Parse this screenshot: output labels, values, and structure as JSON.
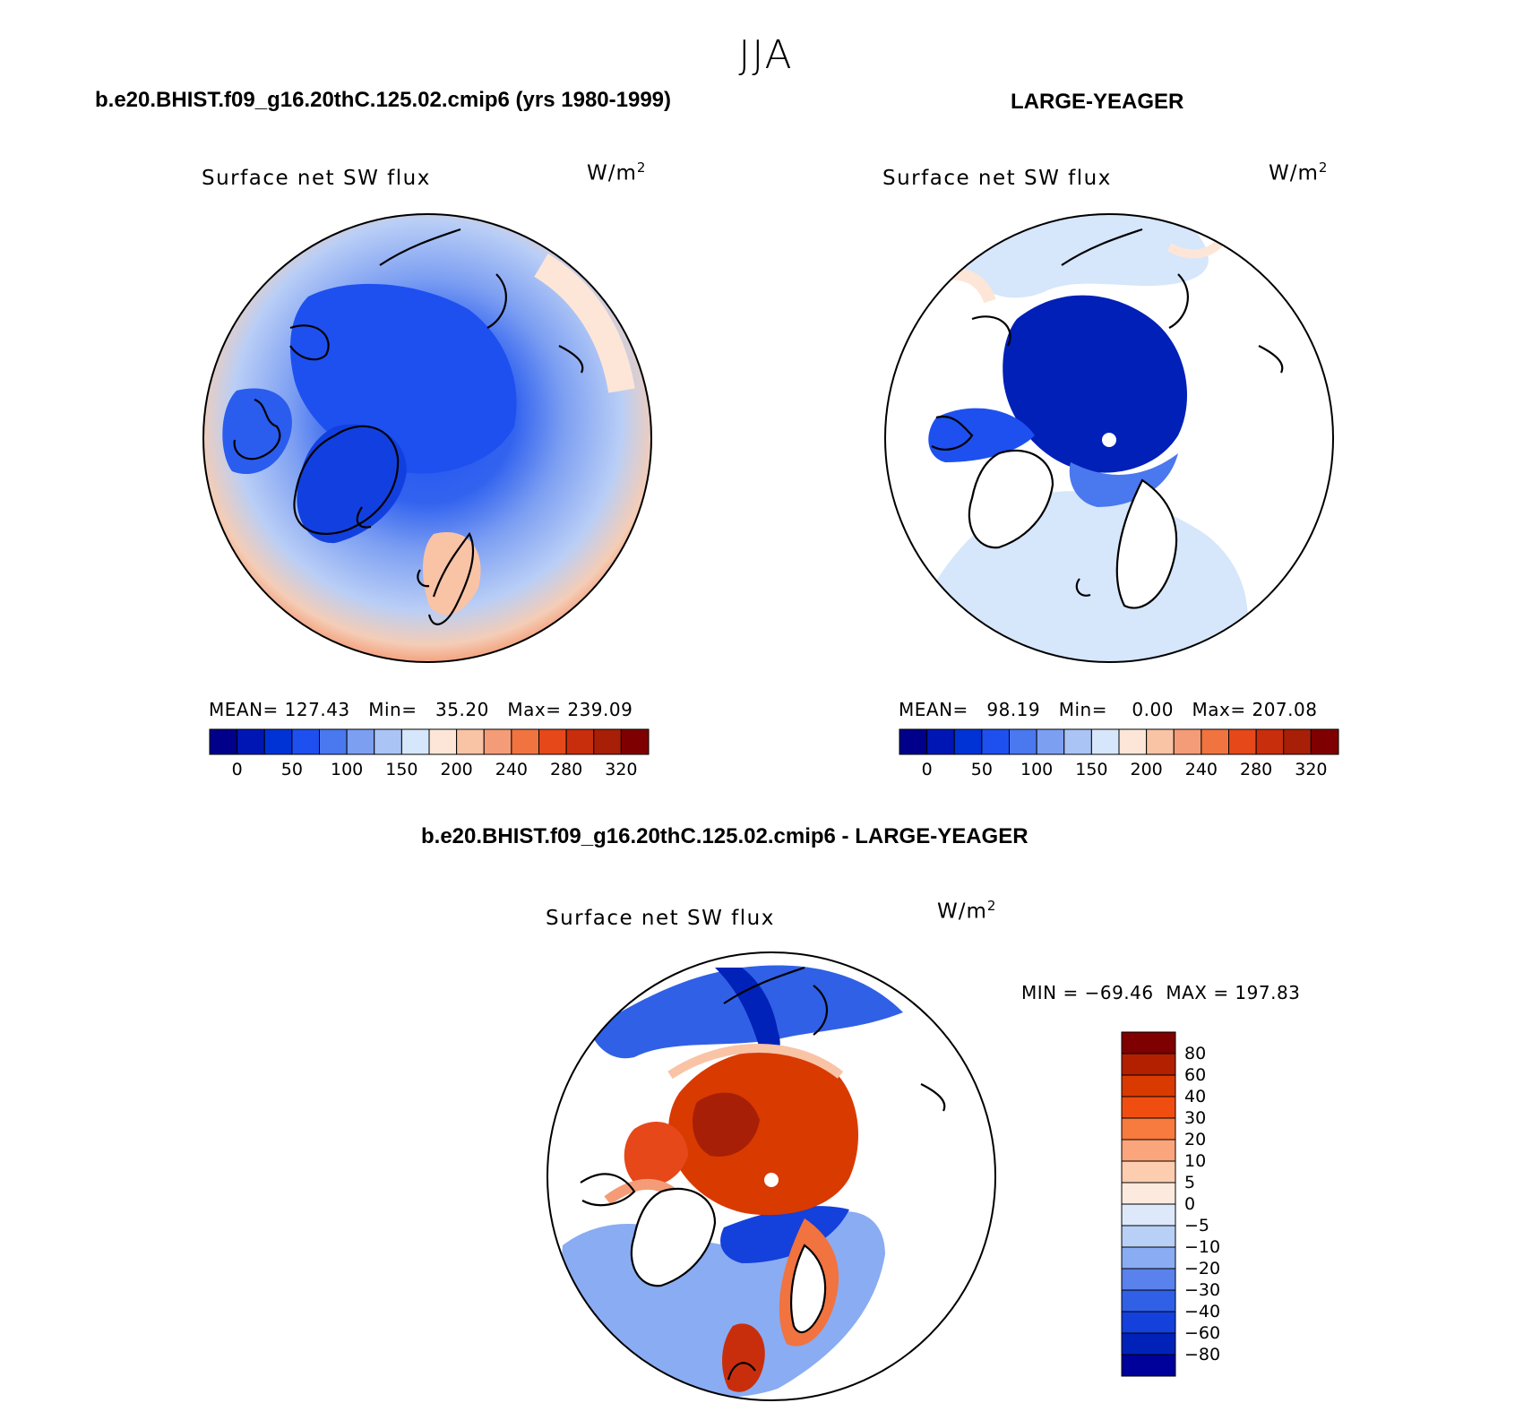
{
  "season": "JJA",
  "panels": [
    {
      "id": "model",
      "header": "b.e20.BHIST.f09_g16.20thC.125.02.cmip6 (yrs 1980-1999)",
      "variable": "Surface net SW flux",
      "units": "W/m",
      "units_exp": "2",
      "stats": {
        "mean_label": "MEAN=",
        "mean": "127.43",
        "min_label": "Min=",
        "min": "35.20",
        "max_label": "Max=",
        "max": "239.09"
      }
    },
    {
      "id": "obs",
      "header": "LARGE-YEAGER",
      "variable": "Surface net SW flux",
      "units": "W/m",
      "units_exp": "2",
      "stats": {
        "mean_label": "MEAN=",
        "mean": "98.19",
        "min_label": "Min=",
        "min": "0.00",
        "max_label": "Max=",
        "max": "207.08"
      }
    },
    {
      "id": "diff",
      "header": "b.e20.BHIST.f09_g16.20thC.125.02.cmip6 - LARGE-YEAGER",
      "variable": "Surface net SW flux",
      "units": "W/m",
      "units_exp": "2",
      "minmax": "MIN = −69.46  MAX = 197.83"
    }
  ],
  "abs_colorbar": {
    "colors": [
      "#00008b",
      "#0016b4",
      "#0033d6",
      "#1e50f0",
      "#4a78ee",
      "#7d9ff2",
      "#aac4f6",
      "#d6e6fb",
      "#fde6d7",
      "#f9c3a6",
      "#f49c77",
      "#f1733f",
      "#e64819",
      "#c92e0c",
      "#a81f08",
      "#7f0000"
    ],
    "labels": [
      "0",
      "50",
      "100",
      "150",
      "200",
      "240",
      "280",
      "320"
    ]
  },
  "diff_colorbar": {
    "colors": [
      "#7f0000",
      "#b22000",
      "#d93a00",
      "#f04e10",
      "#f77a3e",
      "#fba57c",
      "#fdcdb0",
      "#fdeade",
      "#dde9fa",
      "#b8d0f6",
      "#8aacf2",
      "#5a82ec",
      "#3060e6",
      "#1440dc",
      "#0022b8",
      "#00009a"
    ],
    "labels": [
      "80",
      "60",
      "40",
      "30",
      "20",
      "10",
      "5",
      "0",
      "−5",
      "−10",
      "−20",
      "−30",
      "−40",
      "−60",
      "−80"
    ]
  },
  "pole_marker": "pole-dot"
}
